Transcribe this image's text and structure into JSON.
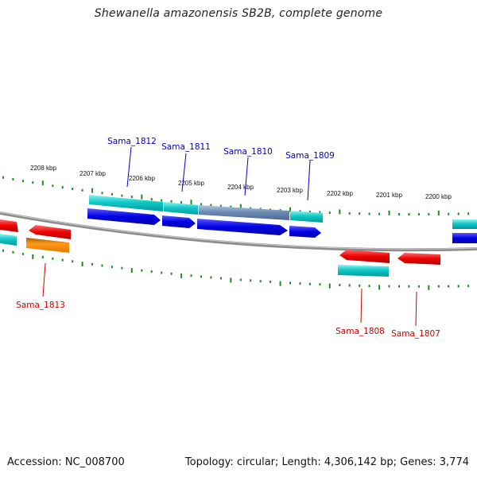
{
  "title": "Shewanella amazonensis SB2B, complete genome",
  "footer": {
    "accession": "Accession: NC_008700",
    "topology": "Topology: circular; Length: 4,306,142 bp; Genes: 3,774"
  },
  "colors": {
    "backbone": "#808080",
    "tick": "#1f8a1f",
    "cds": "#00c8c8",
    "cds_selected": "#6c8cb4",
    "gene_forward": "#0000e6",
    "gene_reverse": "#ee0000",
    "rna_gene": "#ff8c00",
    "label_forward": "#0000cc",
    "label_reverse": "#cc0000"
  },
  "scale_labels": [
    "2208 kbp",
    "2207 kbp",
    "2206 kbp",
    "2205 kbp",
    "2204 kbp",
    "2203 kbp",
    "2202 kbp",
    "2201 kbp",
    "2200 kbp"
  ],
  "genes_forward": [
    "Sama_1812",
    "Sama_1811",
    "Sama_1810",
    "Sama_1809"
  ],
  "genes_reverse": [
    "Sama_1813",
    "Sama_1808",
    "Sama_1807"
  ]
}
